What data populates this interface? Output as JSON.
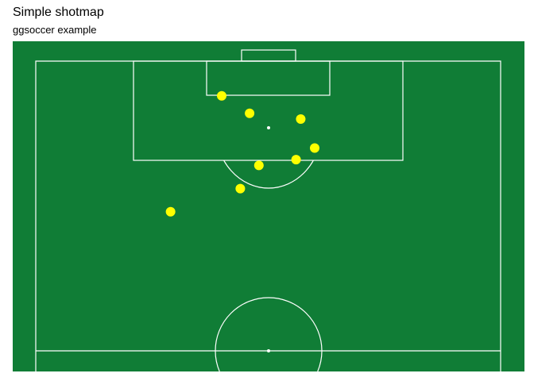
{
  "chart_data": {
    "type": "scatter",
    "title": "Simple shotmap",
    "subtitle": "ggsoccer example",
    "xlabel": "",
    "ylabel": "",
    "pitch": "opta",
    "orientation": "vertical, attacking upward",
    "xlim": [
      49,
      101
    ],
    "ylim": [
      0,
      100
    ],
    "y_reversed": true,
    "grid": false,
    "colors": {
      "pitch_fill": "#107D36",
      "pitch_lines": "#FFFFFF",
      "points": "#FFFF00"
    },
    "points": [
      {
        "x": 90,
        "y": 43
      },
      {
        "x": 85,
        "y": 40
      },
      {
        "x": 82,
        "y": 52
      },
      {
        "x": 78,
        "y": 56
      },
      {
        "x": 83,
        "y": 44
      },
      {
        "x": 74,
        "y": 71
      },
      {
        "x": 94,
        "y": 60
      },
      {
        "x": 91,
        "y": 54
      }
    ]
  }
}
